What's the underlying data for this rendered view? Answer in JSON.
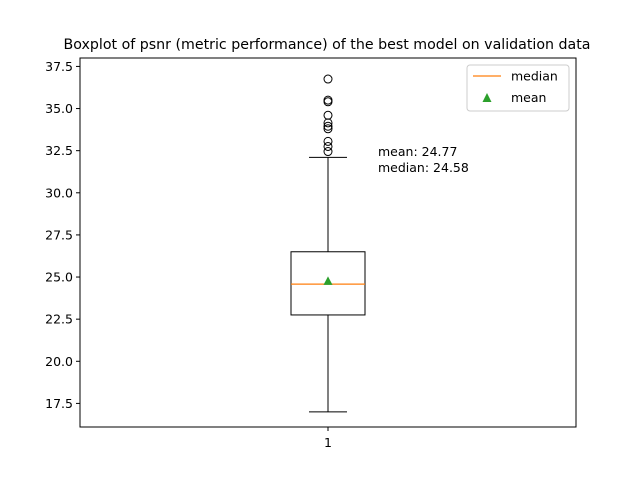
{
  "chart_data": {
    "type": "boxplot",
    "title": "Boxplot of psnr (metric performance) of the best model on validation data",
    "xlabel": "",
    "ylabel": "",
    "categories": [
      "1"
    ],
    "ylim": [
      16.1,
      38.0
    ],
    "yticks": [
      "17.5",
      "20.0",
      "22.5",
      "25.0",
      "27.5",
      "30.0",
      "32.5",
      "35.0",
      "37.5"
    ],
    "box": {
      "whisker_low": 17.0,
      "q1": 22.75,
      "median": 24.58,
      "q3": 26.5,
      "whisker_high": 32.1,
      "mean": 24.77
    },
    "outliers": [
      32.45,
      32.75,
      33.05,
      33.8,
      33.95,
      34.15,
      34.6,
      35.4,
      35.5,
      36.75
    ],
    "annotations": {
      "mean_text": "mean: 24.77",
      "median_text": "median: 24.58"
    },
    "legend": {
      "position": "top-right",
      "entries": [
        {
          "label": "median",
          "marker": "line",
          "color": "#ff7f0e"
        },
        {
          "label": "mean",
          "marker": "triangle",
          "color": "#2ca02c"
        }
      ]
    },
    "colors": {
      "median": "#ff7f0e",
      "mean": "#2ca02c",
      "box": "#000000"
    }
  }
}
